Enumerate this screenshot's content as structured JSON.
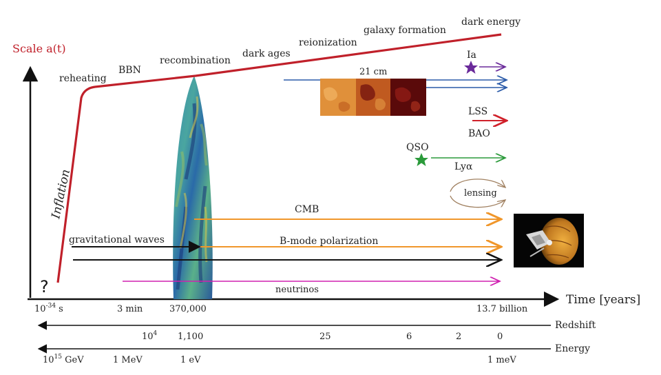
{
  "axes": {
    "y_label": "Scale a(t)",
    "x_label": "Time [years]",
    "redshift_label": "Redshift",
    "energy_label": "Energy"
  },
  "scale_curve": {
    "inflation": "Inflation",
    "question": "?",
    "curve_color": "#c0202a"
  },
  "epochs": {
    "reheating": "reheating",
    "bbn": "BBN",
    "recombination": "recombination",
    "dark_ages": "dark ages",
    "reionization": "reionization",
    "galaxy_formation": "galaxy formation",
    "dark_energy": "dark energy"
  },
  "probes": {
    "ia": "Ia",
    "cm21": "21 cm",
    "lss": "LSS",
    "bao": "BAO",
    "qso": "QSO",
    "lya": "Lyα",
    "lensing": "lensing",
    "cmb": "CMB",
    "bmode": "B-mode polarization",
    "grav_waves": "gravitational waves",
    "neutrinos": "neutrinos"
  },
  "time_ticks": {
    "t1_base": "10",
    "t1_exp": "-34",
    "t1_unit": " s",
    "t2": "3 min",
    "t3": "370,000",
    "t4": "13.7 billion"
  },
  "redshift_ticks": {
    "z1_base": "10",
    "z1_exp": "4",
    "z2": "1,100",
    "z3": "25",
    "z4": "6",
    "z5": "2",
    "z6": "0"
  },
  "energy_ticks": {
    "e1_base": "10",
    "e1_exp": "15",
    "e1_unit": " GeV",
    "e2": "1 MeV",
    "e3": "1 eV",
    "e4": "1 meV"
  },
  "colors": {
    "scale_curve": "#c0202a",
    "cm21": "#2a5aa8",
    "ia": "#6a2a9a",
    "lss": "#d0202a",
    "lya": "#2a9a3a",
    "lensing": "#a08060",
    "cmb": "#f0962a",
    "grav_waves": "#111111",
    "neutrinos": "#d020b0"
  }
}
